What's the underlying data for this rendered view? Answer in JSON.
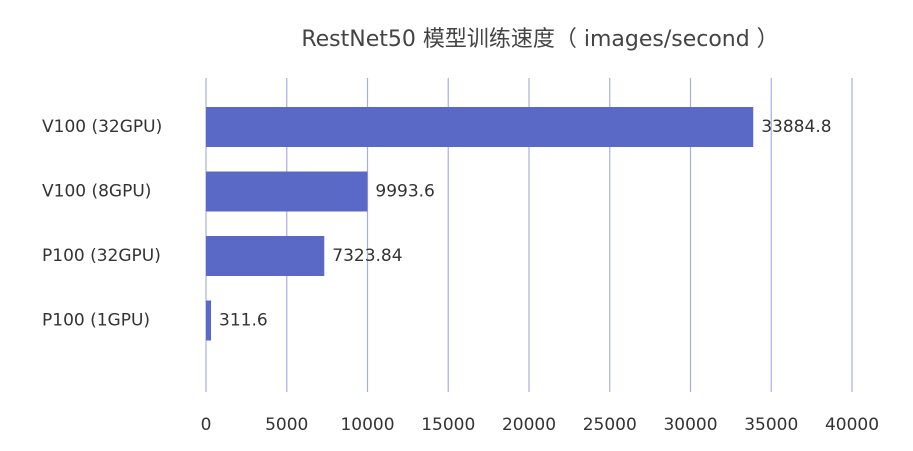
{
  "chart_data": {
    "type": "barh",
    "title": "RestNet50 模型训练速度（ images/second ）",
    "categories": [
      "V100 (32GPU)",
      "V100 (8GPU)",
      "P100 (32GPU)",
      "P100 (1GPU)"
    ],
    "values": [
      33884.8,
      9993.6,
      7323.84,
      311.6
    ],
    "color": "#5b69c6",
    "xlim": [
      0,
      40000
    ],
    "xticks": [
      0,
      5000,
      10000,
      15000,
      20000,
      25000,
      30000,
      35000,
      40000
    ],
    "grid": true
  }
}
